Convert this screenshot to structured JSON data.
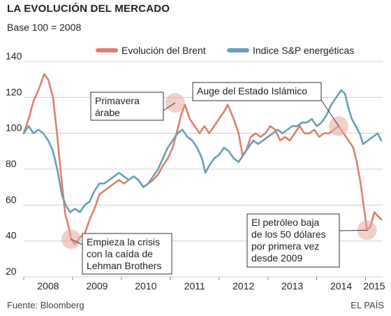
{
  "header": {
    "title": "LA EVOLUCIÓN DEL MERCADO",
    "subtitle": "Base 100 = 2008"
  },
  "footer": {
    "source": "Fuente: Bloomberg",
    "brand": "EL PAÍS"
  },
  "chart_data": {
    "type": "line",
    "ylim": [
      20,
      140
    ],
    "yticks": [
      20,
      40,
      60,
      80,
      100,
      120,
      140
    ],
    "xlim": [
      2008.0,
      2015.35
    ],
    "xticks": [
      "2008",
      "2009",
      "2010",
      "2011",
      "2012",
      "2013",
      "2014",
      "2015"
    ],
    "grid": "horizontal",
    "legend_position": "top-right",
    "series": [
      {
        "name": "Evolución del Brent",
        "color": "#e07e6e",
        "points": [
          [
            2008.0,
            100
          ],
          [
            2008.1,
            108
          ],
          [
            2008.2,
            118
          ],
          [
            2008.3,
            124
          ],
          [
            2008.42,
            133
          ],
          [
            2008.5,
            130
          ],
          [
            2008.6,
            120
          ],
          [
            2008.68,
            100
          ],
          [
            2008.76,
            78
          ],
          [
            2008.85,
            55
          ],
          [
            2008.92,
            48
          ],
          [
            2008.97,
            41
          ],
          [
            2009.05,
            38
          ],
          [
            2009.15,
            42
          ],
          [
            2009.25,
            44
          ],
          [
            2009.35,
            52
          ],
          [
            2009.45,
            58
          ],
          [
            2009.55,
            66
          ],
          [
            2009.65,
            68
          ],
          [
            2009.75,
            70
          ],
          [
            2009.85,
            72
          ],
          [
            2009.95,
            74
          ],
          [
            2010.05,
            72
          ],
          [
            2010.15,
            74
          ],
          [
            2010.25,
            76
          ],
          [
            2010.35,
            74
          ],
          [
            2010.45,
            70
          ],
          [
            2010.55,
            72
          ],
          [
            2010.65,
            74
          ],
          [
            2010.75,
            77
          ],
          [
            2010.85,
            82
          ],
          [
            2010.95,
            86
          ],
          [
            2011.05,
            92
          ],
          [
            2011.15,
            102
          ],
          [
            2011.22,
            110
          ],
          [
            2011.3,
            116
          ],
          [
            2011.4,
            108
          ],
          [
            2011.5,
            104
          ],
          [
            2011.6,
            100
          ],
          [
            2011.7,
            104
          ],
          [
            2011.8,
            100
          ],
          [
            2011.9,
            104
          ],
          [
            2012.0,
            108
          ],
          [
            2012.1,
            112
          ],
          [
            2012.18,
            116
          ],
          [
            2012.3,
            108
          ],
          [
            2012.4,
            100
          ],
          [
            2012.48,
            88
          ],
          [
            2012.55,
            90
          ],
          [
            2012.65,
            98
          ],
          [
            2012.75,
            100
          ],
          [
            2012.85,
            98
          ],
          [
            2012.95,
            100
          ],
          [
            2013.05,
            104
          ],
          [
            2013.15,
            102
          ],
          [
            2013.25,
            96
          ],
          [
            2013.35,
            98
          ],
          [
            2013.45,
            96
          ],
          [
            2013.55,
            100
          ],
          [
            2013.65,
            104
          ],
          [
            2013.75,
            100
          ],
          [
            2013.85,
            100
          ],
          [
            2013.95,
            102
          ],
          [
            2014.05,
            98
          ],
          [
            2014.15,
            100
          ],
          [
            2014.25,
            100
          ],
          [
            2014.35,
            102
          ],
          [
            2014.45,
            104
          ],
          [
            2014.55,
            100
          ],
          [
            2014.65,
            96
          ],
          [
            2014.75,
            92
          ],
          [
            2014.82,
            84
          ],
          [
            2014.9,
            72
          ],
          [
            2014.97,
            58
          ],
          [
            2015.03,
            46
          ],
          [
            2015.1,
            48
          ],
          [
            2015.18,
            56
          ],
          [
            2015.25,
            54
          ],
          [
            2015.32,
            52
          ]
        ]
      },
      {
        "name": "Indice S&P energéticas",
        "color": "#6a9fb5",
        "points": [
          [
            2008.0,
            100
          ],
          [
            2008.1,
            104
          ],
          [
            2008.2,
            100
          ],
          [
            2008.3,
            102
          ],
          [
            2008.4,
            100
          ],
          [
            2008.5,
            96
          ],
          [
            2008.6,
            90
          ],
          [
            2008.7,
            78
          ],
          [
            2008.78,
            66
          ],
          [
            2008.86,
            60
          ],
          [
            2008.95,
            56
          ],
          [
            2009.05,
            58
          ],
          [
            2009.15,
            56
          ],
          [
            2009.25,
            60
          ],
          [
            2009.35,
            62
          ],
          [
            2009.45,
            68
          ],
          [
            2009.55,
            72
          ],
          [
            2009.65,
            72
          ],
          [
            2009.75,
            74
          ],
          [
            2009.85,
            76
          ],
          [
            2009.95,
            78
          ],
          [
            2010.05,
            76
          ],
          [
            2010.15,
            74
          ],
          [
            2010.25,
            76
          ],
          [
            2010.35,
            74
          ],
          [
            2010.45,
            70
          ],
          [
            2010.55,
            72
          ],
          [
            2010.65,
            76
          ],
          [
            2010.75,
            80
          ],
          [
            2010.85,
            86
          ],
          [
            2010.95,
            92
          ],
          [
            2011.05,
            96
          ],
          [
            2011.15,
            100
          ],
          [
            2011.25,
            102
          ],
          [
            2011.35,
            98
          ],
          [
            2011.45,
            96
          ],
          [
            2011.55,
            92
          ],
          [
            2011.65,
            86
          ],
          [
            2011.72,
            78
          ],
          [
            2011.8,
            82
          ],
          [
            2011.9,
            86
          ],
          [
            2012.0,
            88
          ],
          [
            2012.1,
            92
          ],
          [
            2012.2,
            90
          ],
          [
            2012.3,
            86
          ],
          [
            2012.4,
            84
          ],
          [
            2012.5,
            88
          ],
          [
            2012.6,
            92
          ],
          [
            2012.7,
            96
          ],
          [
            2012.8,
            94
          ],
          [
            2012.9,
            96
          ],
          [
            2013.0,
            98
          ],
          [
            2013.1,
            100
          ],
          [
            2013.2,
            102
          ],
          [
            2013.3,
            100
          ],
          [
            2013.4,
            102
          ],
          [
            2013.5,
            104
          ],
          [
            2013.6,
            104
          ],
          [
            2013.7,
            106
          ],
          [
            2013.8,
            106
          ],
          [
            2013.9,
            108
          ],
          [
            2014.0,
            104
          ],
          [
            2014.1,
            106
          ],
          [
            2014.2,
            110
          ],
          [
            2014.3,
            116
          ],
          [
            2014.4,
            120
          ],
          [
            2014.5,
            124
          ],
          [
            2014.58,
            122
          ],
          [
            2014.65,
            114
          ],
          [
            2014.72,
            108
          ],
          [
            2014.8,
            104
          ],
          [
            2014.88,
            100
          ],
          [
            2014.95,
            94
          ],
          [
            2015.05,
            96
          ],
          [
            2015.15,
            98
          ],
          [
            2015.25,
            100
          ],
          [
            2015.32,
            96
          ]
        ]
      }
    ],
    "annotations": [
      {
        "lines": [
          "Empieza la crisis",
          "con la caída de",
          "Lehman Brothers"
        ],
        "x": 2008.97,
        "y": 41
      },
      {
        "lines": [
          "Primavera",
          "árabe"
        ],
        "x": 2011.1,
        "y": 117
      },
      {
        "lines": [
          "Auge del Estado Islámico"
        ],
        "x": 2014.45,
        "y": 104
      },
      {
        "lines": [
          "El petróleo baja",
          "de los 50 dólares",
          "por primera vez",
          "desde 2009"
        ],
        "x": 2015.03,
        "y": 46
      }
    ]
  }
}
